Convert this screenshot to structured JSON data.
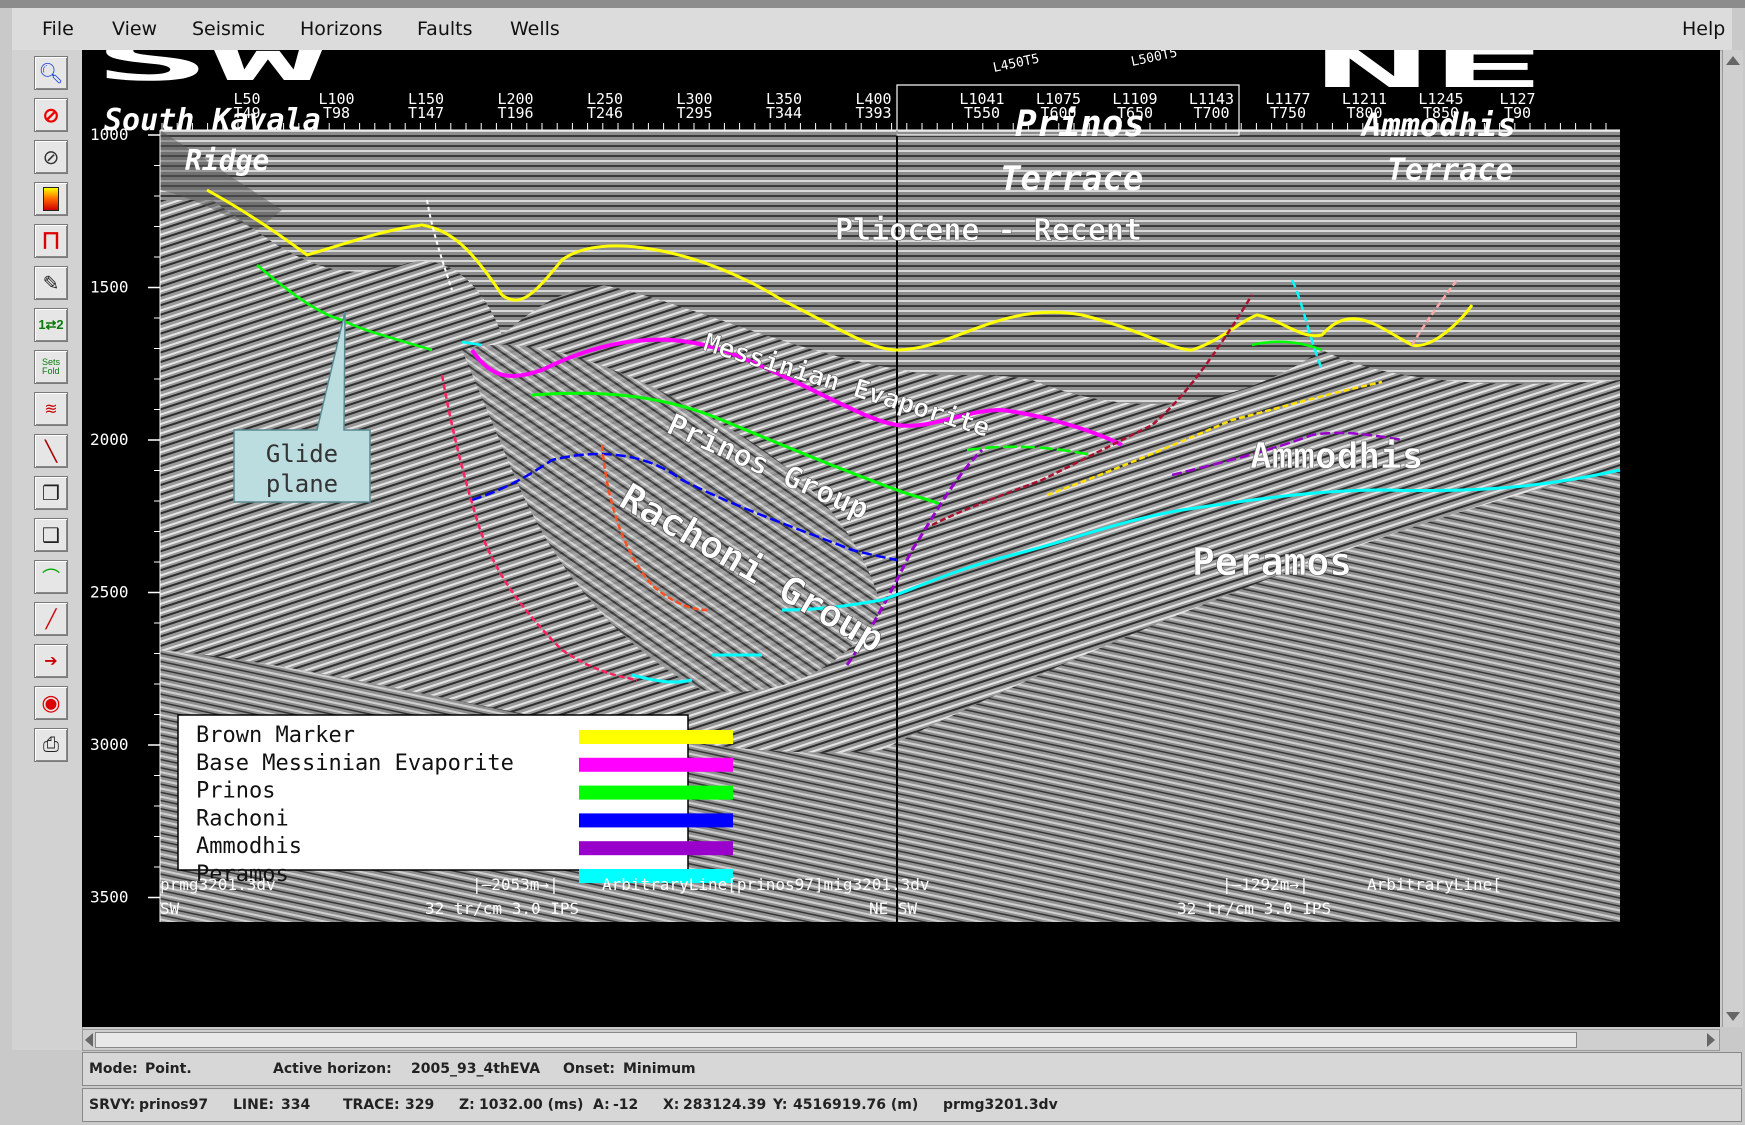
{
  "menu": {
    "file": "File",
    "view": "View",
    "seismic": "Seismic",
    "horizons": "Horizons",
    "faults": "Faults",
    "wells": "Wells",
    "help": "Help"
  },
  "toolbar": {
    "icons": [
      "zoom-icon",
      "no-entry-icon",
      "compass-icon",
      "color-bar-icon",
      "horizon-pick-icon",
      "annotate-icon",
      "swap-icon",
      "sets-icon",
      "wave-icon",
      "line-draw-icon",
      "copy-icon",
      "window-icon",
      "horizon-icon",
      "fault-icon",
      "tracker-icon",
      "target-icon",
      "print-icon"
    ]
  },
  "section": {
    "sw": "SW",
    "ne": "NE",
    "south_kavala": "South Kavala",
    "ridge": "Ridge",
    "prinos": "Prinos",
    "prinos_terrace": "Terrace",
    "ammodhis": "Ammodhis",
    "ammodhis_terrace": "Terrace",
    "pliocene": "Pliocene - Recent",
    "messinian": "Messinian Evaporite",
    "prinos_group": "Prinos Group",
    "rachoni_group": "Rachoni Group",
    "ammodhis_unit": "Ammodhis",
    "peramos_unit": "Peramos",
    "glide_line1": "Glide",
    "glide_line2": "plane",
    "top_labels": [
      {
        "l": "L50",
        "t": "T49"
      },
      {
        "l": "L100",
        "t": "T98"
      },
      {
        "l": "L150",
        "t": "T147"
      },
      {
        "l": "L200",
        "t": "T196"
      },
      {
        "l": "L250",
        "t": "T246"
      },
      {
        "l": "L300",
        "t": "T295"
      },
      {
        "l": "L350",
        "t": "T344"
      },
      {
        "l": "L400",
        "t": "T393"
      },
      {
        "l": "L1041",
        "t": "T550"
      },
      {
        "l": "L1075",
        "t": "T600"
      },
      {
        "l": "L1109",
        "t": "T650"
      },
      {
        "l": "L1143",
        "t": "T700"
      },
      {
        "l": "L1177",
        "t": "T750"
      },
      {
        "l": "L1211",
        "t": "T800"
      },
      {
        "l": "L1245",
        "t": "T850"
      },
      {
        "l": "L127",
        "t": "T90"
      }
    ],
    "diag_labels": [
      "L450T5",
      "L500T5"
    ],
    "depth_ticks": [
      "1000",
      "1500",
      "2000",
      "2500",
      "3000",
      "3500"
    ],
    "bottom_left_file": "prmg3201.3dv",
    "bottom_left_dir": "SW",
    "bottom_left_scale": "32 tr/cm 3.0 IPS",
    "bottom_left_dist": "|–2053m→|",
    "bottom_mid_line": "ArbitraryLine[prinos97]mig3201.3dv",
    "bottom_mid_dir": "NE SW",
    "bottom_right_dist": "|–1292m→|",
    "bottom_right_line": "ArbitraryLine[",
    "bottom_right_scale": "32 tr/cm 3.0 IPS"
  },
  "legend": {
    "items": [
      {
        "label": "Brown Marker",
        "color": "#ffff00"
      },
      {
        "label": "Base Messinian Evaporite",
        "color": "#ff00ff"
      },
      {
        "label": "Prinos",
        "color": "#00ff00"
      },
      {
        "label": "Rachoni",
        "color": "#0000ff"
      },
      {
        "label": "Ammodhis",
        "color": "#9900cc"
      },
      {
        "label": "Peramos",
        "color": "#00ffff"
      }
    ]
  },
  "status": {
    "mode_label": "Mode:",
    "mode_value": "Point.",
    "horizon_label": "Active horizon:",
    "horizon_value": "2005_93_4thEVA",
    "onset_label": "Onset:",
    "onset_value": "Minimum",
    "srvy_label": "SRVY:",
    "srvy_value": "prinos97",
    "line_label": "LINE:",
    "line_value": "334",
    "trace_label": "TRACE:",
    "trace_value": "329",
    "z_label": "Z:",
    "z_value": "1032.00 (ms)",
    "a_label": "A:",
    "a_value": "-12",
    "x_label": "X:",
    "x_value": "283124.39",
    "y_label": "Y:",
    "y_value": "4516919.76 (m)",
    "file_value": "prmg3201.3dv"
  },
  "colors": {
    "brown_marker": "#ffff00",
    "base_messinian": "#ff00ff",
    "prinos": "#00ff00",
    "rachoni": "#0000ff",
    "ammodhis": "#9900cc",
    "peramos": "#00ffff",
    "fault_red": "#ff2060",
    "fault_orange": "#ff5020",
    "fault_dark_red": "#aa1030",
    "glide_box": "#bcdde0"
  }
}
